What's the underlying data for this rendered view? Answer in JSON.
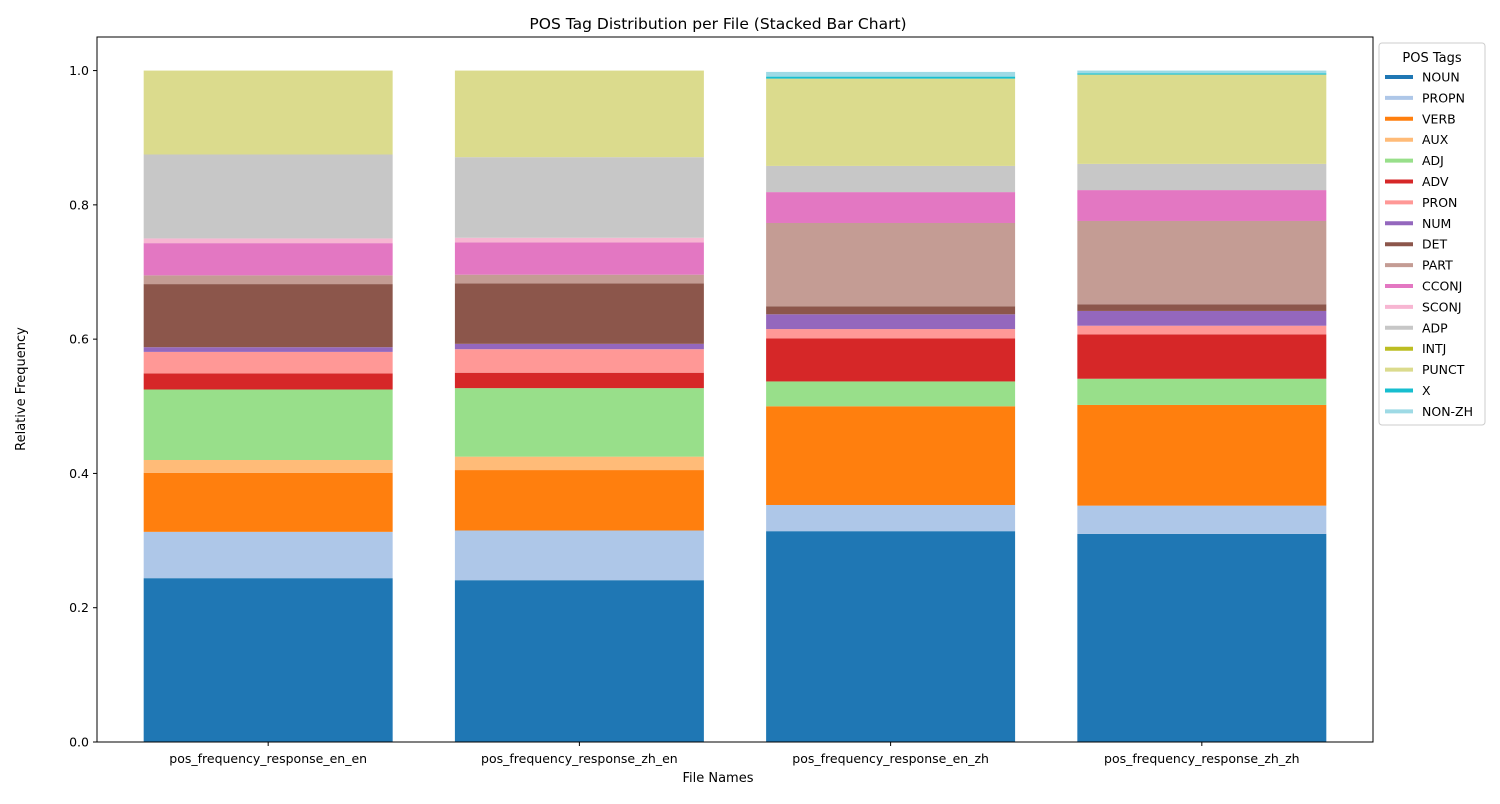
{
  "chart_data": {
    "type": "bar",
    "stacked": true,
    "title": "POS Tag Distribution per File (Stacked Bar Chart)",
    "xlabel": "File Names",
    "ylabel": "Relative Frequency",
    "ylim": [
      0,
      1.05
    ],
    "yticks": [
      "0.0",
      "0.2",
      "0.4",
      "0.6",
      "0.8",
      "1.0"
    ],
    "grid": false,
    "legend_title": "POS Tags",
    "legend_position": "outside-right",
    "categories": [
      "pos_frequency_response_en_en",
      "pos_frequency_response_zh_en",
      "pos_frequency_response_en_zh",
      "pos_frequency_response_zh_zh"
    ],
    "series": [
      {
        "name": "NOUN",
        "color": "#1f77b4",
        "values": [
          0.244,
          0.241,
          0.314,
          0.31
        ]
      },
      {
        "name": "PROPN",
        "color": "#aec7e8",
        "values": [
          0.069,
          0.074,
          0.039,
          0.042
        ]
      },
      {
        "name": "VERB",
        "color": "#ff7f0e",
        "values": [
          0.088,
          0.09,
          0.147,
          0.15
        ]
      },
      {
        "name": "AUX",
        "color": "#ffbb78",
        "values": [
          0.019,
          0.02,
          0.0,
          0.0
        ]
      },
      {
        "name": "ADJ",
        "color": "#98df8a",
        "values": [
          0.105,
          0.102,
          0.037,
          0.039
        ]
      },
      {
        "name": "ADV",
        "color": "#d62728",
        "values": [
          0.024,
          0.023,
          0.064,
          0.066
        ]
      },
      {
        "name": "PRON",
        "color": "#ff9896",
        "values": [
          0.032,
          0.035,
          0.014,
          0.013
        ]
      },
      {
        "name": "NUM",
        "color": "#9467bd",
        "values": [
          0.007,
          0.008,
          0.022,
          0.022
        ]
      },
      {
        "name": "DET",
        "color": "#8c564b",
        "values": [
          0.094,
          0.09,
          0.012,
          0.01
        ]
      },
      {
        "name": "PART",
        "color": "#c49c94",
        "values": [
          0.013,
          0.013,
          0.124,
          0.124
        ]
      },
      {
        "name": "CCONJ",
        "color": "#e377c2",
        "values": [
          0.048,
          0.048,
          0.046,
          0.046
        ]
      },
      {
        "name": "SCONJ",
        "color": "#f7b6d2",
        "values": [
          0.007,
          0.007,
          0.0,
          0.0
        ]
      },
      {
        "name": "ADP",
        "color": "#c7c7c7",
        "values": [
          0.125,
          0.12,
          0.039,
          0.039
        ]
      },
      {
        "name": "INTJ",
        "color": "#bcbd22",
        "values": [
          0.0,
          0.0,
          0.0,
          0.0
        ]
      },
      {
        "name": "PUNCT",
        "color": "#dbdb8d",
        "values": [
          0.125,
          0.129,
          0.13,
          0.133
        ]
      },
      {
        "name": "X",
        "color": "#17becf",
        "values": [
          0.0,
          0.0,
          0.003,
          0.002
        ]
      },
      {
        "name": "NON-ZH",
        "color": "#9edae5",
        "values": [
          0.0,
          0.0,
          0.007,
          0.004
        ]
      }
    ]
  }
}
